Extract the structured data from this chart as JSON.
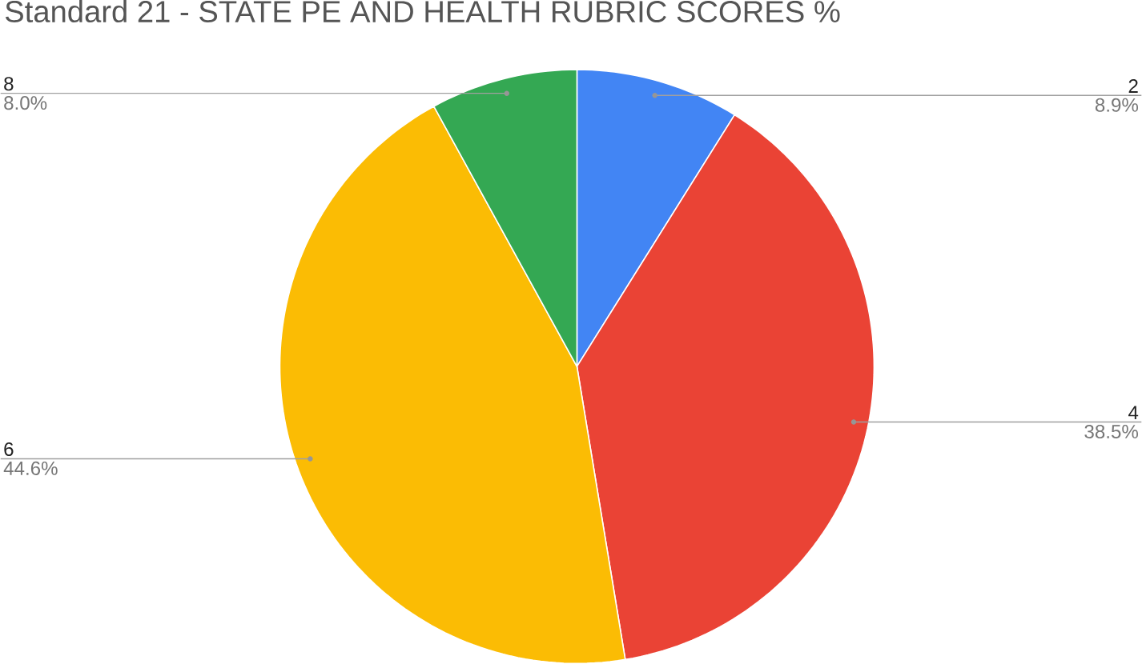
{
  "chart_data": {
    "type": "pie",
    "title": "Standard 21 - STATE PE AND HEALTH RUBRIC SCORES %",
    "categories": [
      "2",
      "4",
      "6",
      "8"
    ],
    "values": [
      8.9,
      38.5,
      44.6,
      8.0
    ],
    "colors": [
      "#4285f4",
      "#ea4335",
      "#fbbc04",
      "#34a853"
    ],
    "value_labels": [
      "8.9%",
      "38.5%",
      "44.6%",
      "8.0%"
    ]
  }
}
